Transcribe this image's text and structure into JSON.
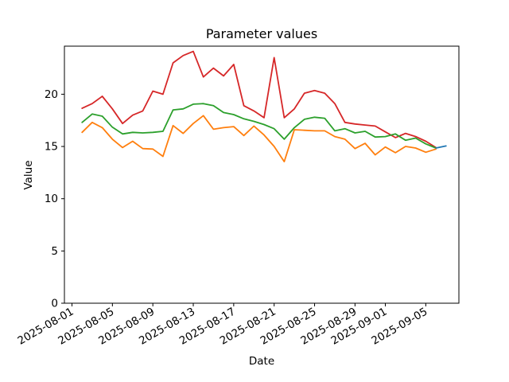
{
  "figure": {
    "background": "#ffffff"
  },
  "chart_data": {
    "type": "line",
    "title": "Parameter values",
    "xlabel": "Date",
    "ylabel": "Value",
    "grid": false,
    "legend": "none",
    "x_axis_type": "date",
    "x_tick_labels": [
      "2025-08-01",
      "2025-08-05",
      "2025-08-09",
      "2025-08-13",
      "2025-08-17",
      "2025-08-21",
      "2025-08-25",
      "2025-08-29",
      "2025-09-01",
      "2025-09-05"
    ],
    "x_tick_rotation_deg": 30,
    "y_ticks": [
      0,
      5,
      10,
      15,
      20
    ],
    "ylim": [
      0,
      24.6
    ],
    "dates": [
      "2025-08-02",
      "2025-08-03",
      "2025-08-04",
      "2025-08-05",
      "2025-08-06",
      "2025-08-07",
      "2025-08-08",
      "2025-08-09",
      "2025-08-10",
      "2025-08-11",
      "2025-08-12",
      "2025-08-13",
      "2025-08-14",
      "2025-08-15",
      "2025-08-16",
      "2025-08-17",
      "2025-08-18",
      "2025-08-19",
      "2025-08-20",
      "2025-08-21",
      "2025-08-22",
      "2025-08-23",
      "2025-08-24",
      "2025-08-25",
      "2025-08-26",
      "2025-08-27",
      "2025-08-28",
      "2025-08-29",
      "2025-08-30",
      "2025-08-31",
      "2025-09-01",
      "2025-09-02",
      "2025-09-03",
      "2025-09-04",
      "2025-09-05",
      "2025-09-06"
    ],
    "series": [
      {
        "name": "red",
        "color": "#d62728",
        "values": [
          18.65,
          19.1,
          19.8,
          18.6,
          17.2,
          18.0,
          18.4,
          20.3,
          20.0,
          23.0,
          23.7,
          24.1,
          21.65,
          22.5,
          21.75,
          22.85,
          18.9,
          18.4,
          17.75,
          23.5,
          17.75,
          18.6,
          20.1,
          20.35,
          20.1,
          19.1,
          17.3,
          17.15,
          17.05,
          16.95,
          16.4,
          15.85,
          16.25,
          15.95,
          15.5,
          14.9
        ]
      },
      {
        "name": "green",
        "color": "#2ca02c",
        "values": [
          17.3,
          18.1,
          17.9,
          16.85,
          16.2,
          16.35,
          16.3,
          16.35,
          16.45,
          18.5,
          18.6,
          19.05,
          19.1,
          18.9,
          18.25,
          18.05,
          17.65,
          17.4,
          17.1,
          16.7,
          15.7,
          16.8,
          17.6,
          17.8,
          17.7,
          16.5,
          16.7,
          16.3,
          16.45,
          15.9,
          15.95,
          16.2,
          15.6,
          15.8,
          15.25,
          14.85
        ]
      },
      {
        "name": "orange",
        "color": "#ff7f0e",
        "values": [
          16.35,
          17.3,
          16.8,
          15.7,
          14.9,
          15.5,
          14.8,
          14.75,
          14.05,
          17.0,
          16.25,
          17.2,
          17.95,
          16.65,
          16.8,
          16.9,
          16.05,
          16.95,
          16.1,
          15.0,
          13.55,
          16.6,
          16.55,
          16.5,
          16.5,
          15.95,
          15.7,
          14.8,
          15.3,
          14.2,
          14.95,
          14.4,
          15.0,
          14.85,
          14.45,
          14.75
        ]
      },
      {
        "name": "blue",
        "color": "#1f77b4",
        "dates": [
          "2025-09-06",
          "2025-09-07"
        ],
        "values": [
          14.85,
          15.05
        ]
      }
    ]
  }
}
